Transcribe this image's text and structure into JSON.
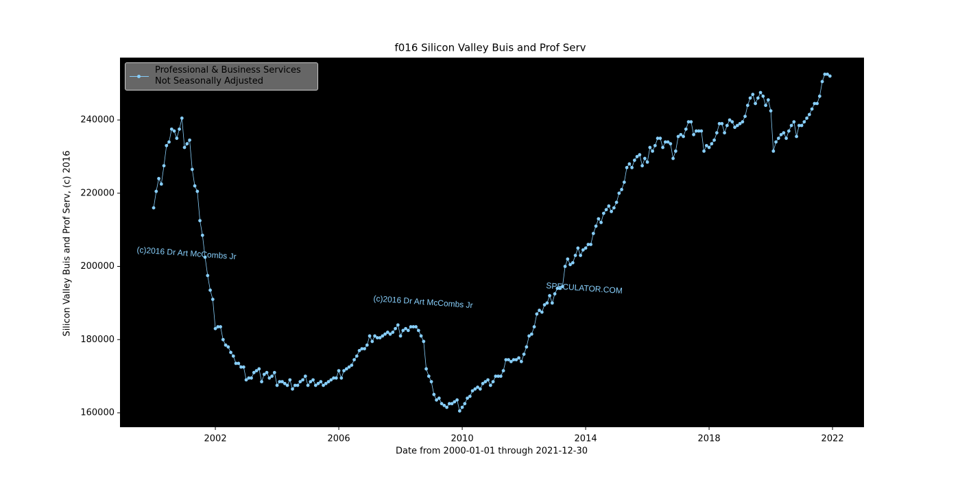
{
  "chart_data": {
    "type": "line",
    "title": "f016 Silicon Valley Buis and Prof Serv",
    "xlabel": "Date from 2000-01-01 through 2021-12-30",
    "ylabel": "Silicon Valley Buis and Prof Serv, (c) 2016",
    "annotations": [
      "(c)2016 Dr Art McCombs Jr",
      "(c)2016 Dr Art McCombs Jr",
      "SPECULATOR.COM"
    ],
    "xlim": [
      1998.91,
      2023.02
    ],
    "xticks": [
      2002,
      2006,
      2010,
      2014,
      2018,
      2022
    ],
    "ylim": [
      156066,
      257049
    ],
    "yticks": [
      160000,
      180000,
      200000,
      220000,
      240000
    ],
    "grid": false,
    "legend": "upper left",
    "background": "#000000",
    "x": [
      "2000-01",
      "2000-02",
      "2000-03",
      "2000-04",
      "2000-05",
      "2000-06",
      "2000-07",
      "2000-08",
      "2000-09",
      "2000-10",
      "2000-11",
      "2000-12",
      "2001-01",
      "2001-02",
      "2001-03",
      "2001-04",
      "2001-05",
      "2001-06",
      "2001-07",
      "2001-08",
      "2001-09",
      "2001-10",
      "2001-11",
      "2001-12",
      "2002-01",
      "2002-02",
      "2002-03",
      "2002-04",
      "2002-05",
      "2002-06",
      "2002-07",
      "2002-08",
      "2002-09",
      "2002-10",
      "2002-11",
      "2002-12",
      "2003-01",
      "2003-02",
      "2003-03",
      "2003-04",
      "2003-05",
      "2003-06",
      "2003-07",
      "2003-08",
      "2003-09",
      "2003-10",
      "2003-11",
      "2003-12",
      "2004-01",
      "2004-02",
      "2004-03",
      "2004-04",
      "2004-05",
      "2004-06",
      "2004-07",
      "2004-08",
      "2004-09",
      "2004-10",
      "2004-11",
      "2004-12",
      "2005-01",
      "2005-02",
      "2005-03",
      "2005-04",
      "2005-05",
      "2005-06",
      "2005-07",
      "2005-08",
      "2005-09",
      "2005-10",
      "2005-11",
      "2005-12",
      "2006-01",
      "2006-02",
      "2006-03",
      "2006-04",
      "2006-05",
      "2006-06",
      "2006-07",
      "2006-08",
      "2006-09",
      "2006-10",
      "2006-11",
      "2006-12",
      "2007-01",
      "2007-02",
      "2007-03",
      "2007-04",
      "2007-05",
      "2007-06",
      "2007-07",
      "2007-08",
      "2007-09",
      "2007-10",
      "2007-11",
      "2007-12",
      "2008-01",
      "2008-02",
      "2008-03",
      "2008-04",
      "2008-05",
      "2008-06",
      "2008-07",
      "2008-08",
      "2008-09",
      "2008-10",
      "2008-11",
      "2008-12",
      "2009-01",
      "2009-02",
      "2009-03",
      "2009-04",
      "2009-05",
      "2009-06",
      "2009-07",
      "2009-08",
      "2009-09",
      "2009-10",
      "2009-11",
      "2009-12",
      "2010-01",
      "2010-02",
      "2010-03",
      "2010-04",
      "2010-05",
      "2010-06",
      "2010-07",
      "2010-08",
      "2010-09",
      "2010-10",
      "2010-11",
      "2010-12",
      "2011-01",
      "2011-02",
      "2011-03",
      "2011-04",
      "2011-05",
      "2011-06",
      "2011-07",
      "2011-08",
      "2011-09",
      "2011-10",
      "2011-11",
      "2011-12",
      "2012-01",
      "2012-02",
      "2012-03",
      "2012-04",
      "2012-05",
      "2012-06",
      "2012-07",
      "2012-08",
      "2012-09",
      "2012-10",
      "2012-11",
      "2012-12",
      "2013-01",
      "2013-02",
      "2013-03",
      "2013-04",
      "2013-05",
      "2013-06",
      "2013-07",
      "2013-08",
      "2013-09",
      "2013-10",
      "2013-11",
      "2013-12",
      "2014-01",
      "2014-02",
      "2014-03",
      "2014-04",
      "2014-05",
      "2014-06",
      "2014-07",
      "2014-08",
      "2014-09",
      "2014-10",
      "2014-11",
      "2014-12",
      "2015-01",
      "2015-02",
      "2015-03",
      "2015-04",
      "2015-05",
      "2015-06",
      "2015-07",
      "2015-08",
      "2015-09",
      "2015-10",
      "2015-11",
      "2015-12",
      "2016-01",
      "2016-02",
      "2016-03",
      "2016-04",
      "2016-05",
      "2016-06",
      "2016-07",
      "2016-08",
      "2016-09",
      "2016-10",
      "2016-11",
      "2016-12",
      "2017-01",
      "2017-02",
      "2017-03",
      "2017-04",
      "2017-05",
      "2017-06",
      "2017-07",
      "2017-08",
      "2017-09",
      "2017-10",
      "2017-11",
      "2017-12",
      "2018-01",
      "2018-02",
      "2018-03",
      "2018-04",
      "2018-05",
      "2018-06",
      "2018-07",
      "2018-08",
      "2018-09",
      "2018-10",
      "2018-11",
      "2018-12",
      "2019-01",
      "2019-02",
      "2019-03",
      "2019-04",
      "2019-05",
      "2019-06",
      "2019-07",
      "2019-08",
      "2019-09",
      "2019-10",
      "2019-11",
      "2019-12",
      "2020-01",
      "2020-02",
      "2020-03",
      "2020-04",
      "2020-05",
      "2020-06",
      "2020-07",
      "2020-08",
      "2020-09",
      "2020-10",
      "2020-11",
      "2020-12",
      "2021-01",
      "2021-02",
      "2021-03",
      "2021-04",
      "2021-05",
      "2021-06",
      "2021-07",
      "2021-08",
      "2021-09",
      "2021-10",
      "2021-11",
      "2021-12"
    ],
    "series": [
      {
        "name": "Professional & Business Services\nNot Seasonally Adjusted",
        "color": "#87cefa",
        "values": [
          216000,
          220500,
          224000,
          222500,
          227500,
          233000,
          234000,
          237500,
          237000,
          235000,
          237500,
          240500,
          232500,
          233500,
          234500,
          226500,
          222000,
          220500,
          212500,
          208500,
          202500,
          197500,
          193500,
          191000,
          183000,
          183500,
          183500,
          180000,
          178500,
          178000,
          176500,
          175500,
          173500,
          173500,
          172500,
          172500,
          169000,
          169500,
          169500,
          171000,
          171500,
          172000,
          168500,
          170500,
          171000,
          169500,
          170000,
          171000,
          167500,
          168500,
          168500,
          168000,
          167500,
          169000,
          166500,
          167500,
          167500,
          168500,
          169000,
          170000,
          167500,
          168500,
          169000,
          167500,
          168000,
          168500,
          167500,
          168000,
          168500,
          169000,
          169500,
          169500,
          171500,
          169500,
          171500,
          172000,
          172500,
          173000,
          174500,
          175500,
          177000,
          177500,
          177500,
          178500,
          181000,
          179500,
          181000,
          180500,
          180500,
          181000,
          181500,
          182000,
          181500,
          182000,
          183000,
          184000,
          181000,
          182500,
          183000,
          182500,
          183500,
          183500,
          183500,
          182500,
          181000,
          179500,
          172000,
          170000,
          168500,
          165000,
          163500,
          164000,
          162500,
          162000,
          161500,
          162500,
          162500,
          163000,
          163500,
          160500,
          161500,
          162500,
          164000,
          164500,
          166000,
          166500,
          167000,
          166500,
          168000,
          168500,
          169000,
          167500,
          168500,
          170000,
          170000,
          170000,
          171500,
          174500,
          174500,
          174000,
          174500,
          174500,
          175000,
          174000,
          176000,
          178000,
          181000,
          181500,
          183500,
          187000,
          188000,
          187500,
          189500,
          190000,
          192000,
          190000,
          192500,
          194000,
          194000,
          194500,
          200000,
          202000,
          200500,
          201000,
          203000,
          205000,
          203000,
          204500,
          205000,
          206000,
          206000,
          209000,
          211000,
          213000,
          212000,
          214500,
          215500,
          216500,
          215000,
          216000,
          217500,
          220000,
          221000,
          223000,
          227000,
          228000,
          227000,
          229000,
          230000,
          230500,
          227500,
          229500,
          228500,
          232500,
          231500,
          233000,
          235000,
          235000,
          232500,
          234000,
          234000,
          233500,
          229500,
          231500,
          235500,
          236000,
          235500,
          237500,
          239500,
          239500,
          236000,
          237000,
          237000,
          237000,
          231500,
          233000,
          232500,
          233500,
          234500,
          236500,
          239000,
          239000,
          236500,
          238500,
          240000,
          239500,
          238000,
          238500,
          239000,
          239500,
          241000,
          244000,
          246000,
          247000,
          244500,
          246000,
          247500,
          246500,
          244000,
          245500,
          242500,
          231500,
          234000,
          235000,
          236000,
          236500,
          235000,
          237000,
          238500,
          239500,
          235500,
          238500,
          238500,
          239500,
          240500,
          241500,
          243000,
          244500,
          244500,
          246500,
          250500,
          252500,
          252500,
          252000
        ]
      }
    ]
  }
}
